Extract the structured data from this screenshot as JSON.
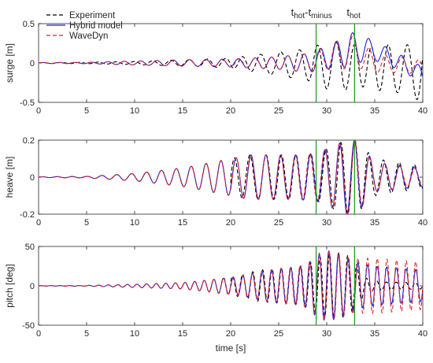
{
  "chart_data": [
    {
      "type": "line",
      "ylabel": "surge [m]",
      "xlabel": "",
      "xlim": [
        0,
        40
      ],
      "ylim": [
        -0.5,
        0.5
      ],
      "xticks": [
        "0",
        "5",
        "10",
        "15",
        "20",
        "25",
        "30",
        "35",
        "40"
      ],
      "yticks": [
        "-0.5",
        "0",
        "0.5"
      ],
      "vlines": [
        28.9,
        32.9
      ],
      "annotations": [
        {
          "main": "t",
          "sub": "hot",
          "mid": "-t",
          "sub2": "minus",
          "x": 28.9
        },
        {
          "main": "t",
          "sub": "hot",
          "x": 32.9
        }
      ],
      "legend": [
        "Experiment",
        "Hybrid model",
        "WaveDyn"
      ],
      "series": [
        {
          "name": "Experiment",
          "color": "#000000",
          "dash": "dashed",
          "envelope": [
            [
              0,
              0.005
            ],
            [
              5,
              0.008
            ],
            [
              10,
              0.02
            ],
            [
              15,
              0.04
            ],
            [
              20,
              0.06
            ],
            [
              22,
              0.1
            ],
            [
              25,
              0.15
            ],
            [
              28,
              0.2
            ],
            [
              30,
              0.3
            ],
            [
              32,
              0.3
            ],
            [
              34,
              0.25
            ],
            [
              36,
              0.3
            ],
            [
              38,
              0.3
            ],
            [
              40,
              0.4
            ]
          ],
          "period": 1.9,
          "offset": [
            [
              0,
              0
            ],
            [
              20,
              0
            ],
            [
              28,
              -0.02
            ],
            [
              34,
              -0.05
            ],
            [
              40,
              -0.1
            ]
          ]
        },
        {
          "name": "Hybrid model",
          "color": "#1f1fe0",
          "dash": "solid",
          "envelope": [
            [
              0,
              0.005
            ],
            [
              5,
              0.008
            ],
            [
              10,
              0.025
            ],
            [
              15,
              0.04
            ],
            [
              20,
              0.05
            ],
            [
              25,
              0.08
            ],
            [
              28,
              0.12
            ],
            [
              30,
              0.15
            ],
            [
              32,
              0.2
            ],
            [
              33,
              0.2
            ],
            [
              35,
              0.12
            ],
            [
              38,
              0.1
            ],
            [
              40,
              0.1
            ]
          ],
          "period": 1.7,
          "offset": [
            [
              0,
              0
            ],
            [
              28,
              0
            ],
            [
              31,
              0.1
            ],
            [
              33,
              0.2
            ],
            [
              35,
              0.15
            ],
            [
              37,
              0.05
            ],
            [
              40,
              -0.15
            ]
          ]
        },
        {
          "name": "WaveDyn",
          "color": "#e02020",
          "dash": "dashed",
          "envelope": [
            [
              0,
              0.005
            ],
            [
              5,
              0.008
            ],
            [
              10,
              0.025
            ],
            [
              15,
              0.04
            ],
            [
              20,
              0.05
            ],
            [
              25,
              0.08
            ],
            [
              28,
              0.12
            ],
            [
              30,
              0.15
            ],
            [
              32,
              0.2
            ],
            [
              33,
              0.2
            ],
            [
              35,
              0.12
            ],
            [
              38,
              0.1
            ],
            [
              40,
              0.08
            ]
          ],
          "period": 1.7,
          "offset": [
            [
              0,
              0
            ],
            [
              28,
              0
            ],
            [
              31,
              0.1
            ],
            [
              33,
              0.15
            ],
            [
              35,
              0
            ],
            [
              40,
              -0.05
            ]
          ]
        }
      ]
    },
    {
      "type": "line",
      "ylabel": "heave [m]",
      "xlabel": "",
      "xlim": [
        0,
        40
      ],
      "ylim": [
        -0.2,
        0.2
      ],
      "xticks": [
        "0",
        "5",
        "10",
        "15",
        "20",
        "25",
        "30",
        "35",
        "40"
      ],
      "yticks": [
        "-0.2",
        "0",
        "0.2"
      ],
      "vlines": [
        28.9,
        32.9
      ],
      "series": [
        {
          "name": "Experiment",
          "color": "#000000",
          "dash": "dashed",
          "envelope": [
            [
              0,
              0.002
            ],
            [
              5,
              0.004
            ],
            [
              10,
              0.02
            ],
            [
              15,
              0.05
            ],
            [
              20,
              0.1
            ],
            [
              22,
              0.12
            ],
            [
              25,
              0.12
            ],
            [
              27,
              0.12
            ],
            [
              29,
              0.13
            ],
            [
              32,
              0.2
            ],
            [
              33,
              0.2
            ],
            [
              35,
              0.1
            ],
            [
              40,
              0.06
            ]
          ],
          "period": 1.55,
          "offset": [
            [
              0,
              0
            ]
          ]
        },
        {
          "name": "Hybrid model",
          "color": "#1f1fe0",
          "dash": "solid",
          "envelope": [
            [
              0,
              0.002
            ],
            [
              5,
              0.004
            ],
            [
              10,
              0.02
            ],
            [
              15,
              0.05
            ],
            [
              20,
              0.1
            ],
            [
              22,
              0.12
            ],
            [
              25,
              0.12
            ],
            [
              27,
              0.12
            ],
            [
              29,
              0.13
            ],
            [
              32,
              0.2
            ],
            [
              33,
              0.2
            ],
            [
              35,
              0.08
            ],
            [
              40,
              0.05
            ]
          ],
          "period": 1.55,
          "offset": [
            [
              0,
              0
            ]
          ]
        },
        {
          "name": "WaveDyn",
          "color": "#e02020",
          "dash": "dashed",
          "envelope": [
            [
              0,
              0.002
            ],
            [
              5,
              0.004
            ],
            [
              10,
              0.02
            ],
            [
              15,
              0.05
            ],
            [
              20,
              0.1
            ],
            [
              22,
              0.12
            ],
            [
              25,
              0.12
            ],
            [
              27,
              0.12
            ],
            [
              29,
              0.13
            ],
            [
              32,
              0.2
            ],
            [
              33,
              0.2
            ],
            [
              35,
              0.08
            ],
            [
              40,
              0.04
            ]
          ],
          "period": 1.55,
          "offset": [
            [
              0,
              0
            ]
          ]
        }
      ]
    },
    {
      "type": "line",
      "ylabel": "pitch [deg]",
      "xlabel": "time [s]",
      "xlim": [
        0,
        40
      ],
      "ylim": [
        -50,
        50
      ],
      "xticks": [
        "0",
        "5",
        "10",
        "15",
        "20",
        "25",
        "30",
        "35",
        "40"
      ],
      "yticks": [
        "-50",
        "0",
        "50"
      ],
      "vlines": [
        28.9,
        32.9
      ],
      "series": [
        {
          "name": "Experiment",
          "color": "#000000",
          "dash": "dashed",
          "envelope": [
            [
              0,
              0.2
            ],
            [
              5,
              0.5
            ],
            [
              10,
              2
            ],
            [
              15,
              4
            ],
            [
              18,
              8
            ],
            [
              21,
              14
            ],
            [
              23,
              20
            ],
            [
              25,
              22
            ],
            [
              27,
              24
            ],
            [
              28,
              28
            ],
            [
              29,
              35
            ],
            [
              30,
              40
            ],
            [
              31,
              42
            ],
            [
              32,
              40
            ],
            [
              33,
              30
            ],
            [
              34,
              10
            ],
            [
              36,
              5
            ],
            [
              40,
              4
            ]
          ],
          "period": 1.0,
          "offset": [
            [
              0,
              0
            ]
          ]
        },
        {
          "name": "Hybrid model",
          "color": "#1f1fe0",
          "dash": "solid",
          "envelope": [
            [
              0,
              0.2
            ],
            [
              5,
              0.5
            ],
            [
              10,
              2
            ],
            [
              15,
              4
            ],
            [
              18,
              8
            ],
            [
              21,
              12
            ],
            [
              23,
              18
            ],
            [
              25,
              22
            ],
            [
              27,
              24
            ],
            [
              28,
              28
            ],
            [
              29,
              40
            ],
            [
              30,
              45
            ],
            [
              31,
              42
            ],
            [
              32,
              35
            ],
            [
              33,
              30
            ],
            [
              35,
              25
            ],
            [
              38,
              22
            ],
            [
              40,
              20
            ]
          ],
          "period": 1.0,
          "offset": [
            [
              0,
              0
            ]
          ]
        },
        {
          "name": "WaveDyn",
          "color": "#e02020",
          "dash": "dashed",
          "envelope": [
            [
              0,
              0.2
            ],
            [
              5,
              0.5
            ],
            [
              10,
              2
            ],
            [
              15,
              4
            ],
            [
              18,
              8
            ],
            [
              21,
              12
            ],
            [
              23,
              18
            ],
            [
              25,
              22
            ],
            [
              27,
              24
            ],
            [
              28,
              28
            ],
            [
              29,
              38
            ],
            [
              30,
              45
            ],
            [
              31,
              42
            ],
            [
              32,
              38
            ],
            [
              33,
              35
            ],
            [
              35,
              35
            ],
            [
              38,
              32
            ],
            [
              40,
              30
            ]
          ],
          "period": 1.0,
          "offset": [
            [
              0,
              0
            ]
          ]
        }
      ]
    }
  ]
}
